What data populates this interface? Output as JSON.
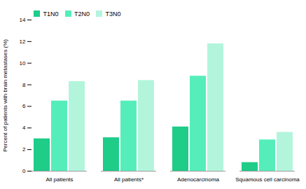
{
  "chart_data": {
    "type": "bar",
    "categories": [
      "All patients",
      "All patients*",
      "Adenocarcinoma",
      "Squamous cell carcinoma"
    ],
    "series": [
      {
        "name": "T1N0",
        "color": "#1fcc88",
        "values": [
          3.0,
          3.1,
          4.1,
          0.8
        ]
      },
      {
        "name": "T2N0",
        "color": "#55eebb",
        "values": [
          6.5,
          6.5,
          8.8,
          2.9
        ]
      },
      {
        "name": "T3N0",
        "color": "#b3f5dc",
        "values": [
          8.3,
          8.4,
          11.8,
          3.6
        ]
      }
    ],
    "ylabel": "Percent of patients with brain metastases (%)",
    "ylim": [
      0,
      14
    ],
    "yticks": [
      0,
      2,
      4,
      6,
      8,
      10,
      12,
      14
    ],
    "grid": false,
    "legend": "upper left"
  }
}
